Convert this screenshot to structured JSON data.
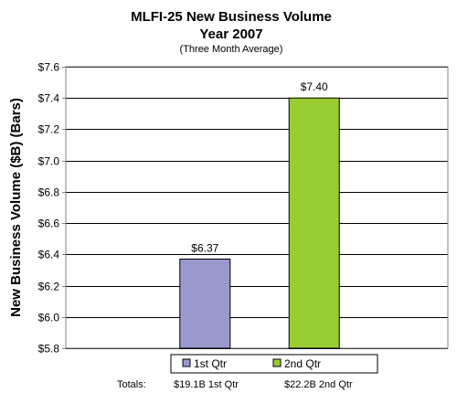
{
  "chart_data": {
    "type": "bar",
    "title": "MLFI-25 New Business Volume",
    "title_line2": "Year 2007",
    "subtitle": "(Three Month Average)",
    "ylabel": "New Business Volume ($B) (Bars)",
    "xlabel": "",
    "ylim": [
      5.8,
      7.6
    ],
    "ytick_step": 0.2,
    "ytick_labels": [
      "$5.8",
      "$6.0",
      "$6.2",
      "$6.4",
      "$6.6",
      "$6.8",
      "$7.0",
      "$7.2",
      "$7.4",
      "$7.6"
    ],
    "grid": true,
    "legend_position": "bottom",
    "categories": [
      "1st Qtr",
      "2nd Qtr"
    ],
    "values": [
      6.37,
      7.4
    ],
    "data_labels": [
      "$6.37",
      "$7.40"
    ],
    "colors": [
      "#9999cc",
      "#99cc33"
    ],
    "footer": {
      "label": "Totals:",
      "values": [
        "$19.1B 1st Qtr",
        "$22.2B 2nd Qtr"
      ]
    }
  }
}
